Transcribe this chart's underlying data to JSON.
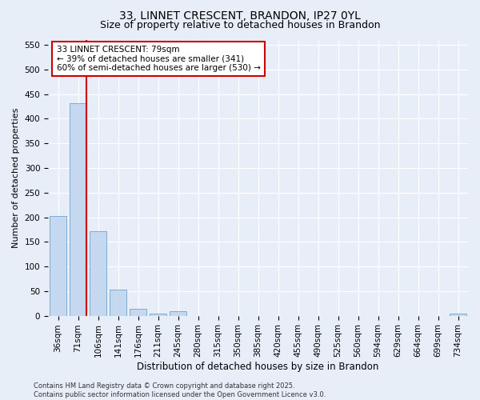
{
  "title1": "33, LINNET CRESCENT, BRANDON, IP27 0YL",
  "title2": "Size of property relative to detached houses in Brandon",
  "xlabel": "Distribution of detached houses by size in Brandon",
  "ylabel": "Number of detached properties",
  "bar_labels": [
    "36sqm",
    "71sqm",
    "106sqm",
    "141sqm",
    "176sqm",
    "211sqm",
    "245sqm",
    "280sqm",
    "315sqm",
    "350sqm",
    "385sqm",
    "420sqm",
    "455sqm",
    "490sqm",
    "525sqm",
    "560sqm",
    "594sqm",
    "629sqm",
    "664sqm",
    "699sqm",
    "734sqm"
  ],
  "bar_values": [
    203,
    432,
    172,
    53,
    14,
    5,
    9,
    0,
    0,
    0,
    0,
    0,
    0,
    0,
    0,
    0,
    0,
    0,
    0,
    0,
    4
  ],
  "bar_color": "#c5d8f0",
  "bar_edge_color": "#7aadd4",
  "vline_color": "#cc0000",
  "annotation_text": "33 LINNET CRESCENT: 79sqm\n← 39% of detached houses are smaller (341)\n60% of semi-detached houses are larger (530) →",
  "annotation_box_color": "#cc0000",
  "ylim": [
    0,
    560
  ],
  "yticks": [
    0,
    50,
    100,
    150,
    200,
    250,
    300,
    350,
    400,
    450,
    500,
    550
  ],
  "bg_color": "#e8eef8",
  "plot_bg_color": "#e8eef8",
  "footer": "Contains HM Land Registry data © Crown copyright and database right 2025.\nContains public sector information licensed under the Open Government Licence v3.0.",
  "title1_fontsize": 10,
  "title2_fontsize": 9,
  "xlabel_fontsize": 8.5,
  "ylabel_fontsize": 8,
  "tick_fontsize": 7.5,
  "annotation_fontsize": 7.5,
  "footer_fontsize": 6
}
